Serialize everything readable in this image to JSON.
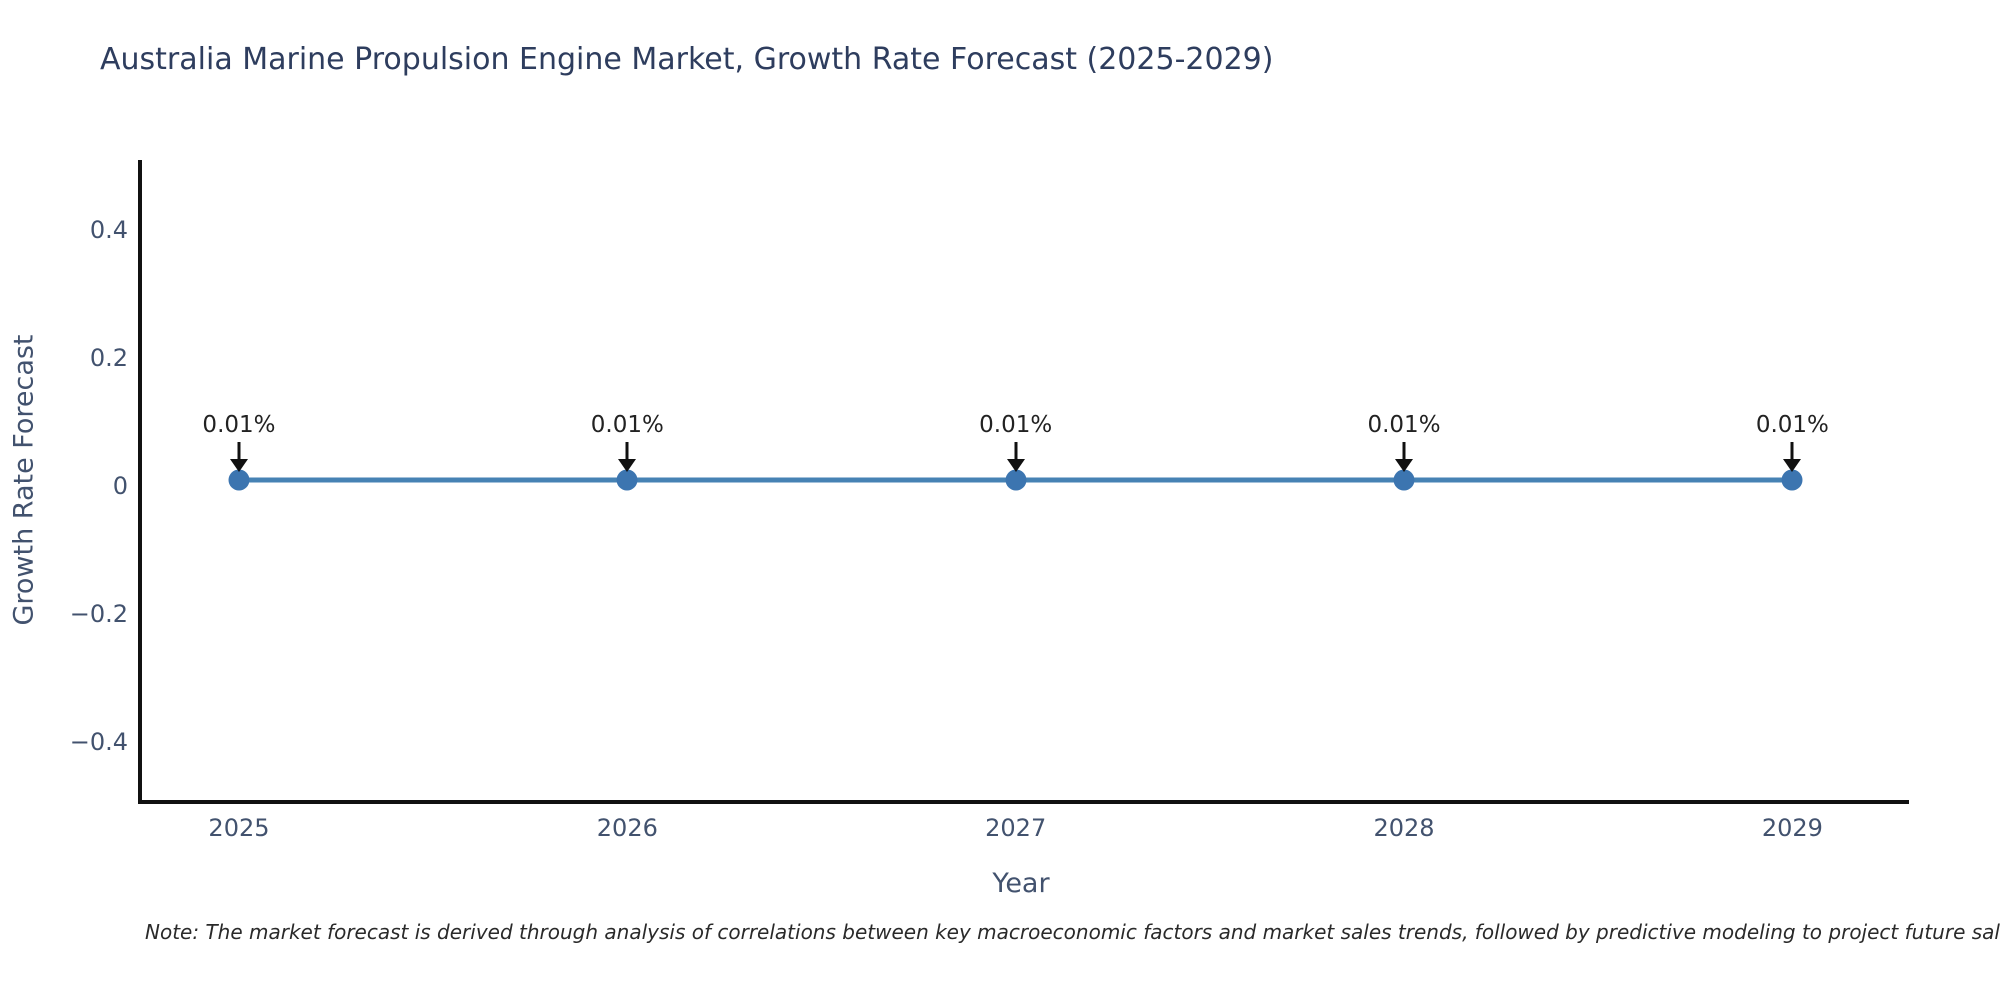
{
  "chart_data": {
    "type": "line",
    "title": "Australia Marine Propulsion Engine Market, Growth Rate Forecast (2025-2029)",
    "xlabel": "Year",
    "ylabel": "Growth Rate Forecast",
    "x": [
      2025,
      2026,
      2027,
      2028,
      2029
    ],
    "series": [
      {
        "name": "Growth Rate Forecast",
        "values": [
          0.01,
          0.01,
          0.01,
          0.01,
          0.01
        ]
      }
    ],
    "point_labels": [
      "0.01%",
      "0.01%",
      "0.01%",
      "0.01%",
      "0.01%"
    ],
    "xtick_labels": [
      "2025",
      "2026",
      "2027",
      "2028",
      "2029"
    ],
    "ytick_values": [
      0.4,
      0.2,
      0,
      -0.2,
      -0.4
    ],
    "ytick_labels": [
      "0.4",
      "0.2",
      "0",
      "−0.2",
      "−0.4"
    ],
    "xlim": [
      2024.74,
      2029.29
    ],
    "ylim": [
      -0.49,
      0.51
    ],
    "grid": false,
    "legend_position": "none",
    "annotations_have_down_arrows": true,
    "colors": {
      "line": "#4682b4",
      "marker": "#3c75b0",
      "arrow": "#111111",
      "axis_line": "#111111",
      "tick_text": "#42526e",
      "title_text": "#2e3d5e"
    }
  },
  "note": {
    "text": "Note: The market forecast is derived through analysis of correlations between key macroeconomic factors and market sales trends, followed by predictive modeling to project future sales."
  }
}
